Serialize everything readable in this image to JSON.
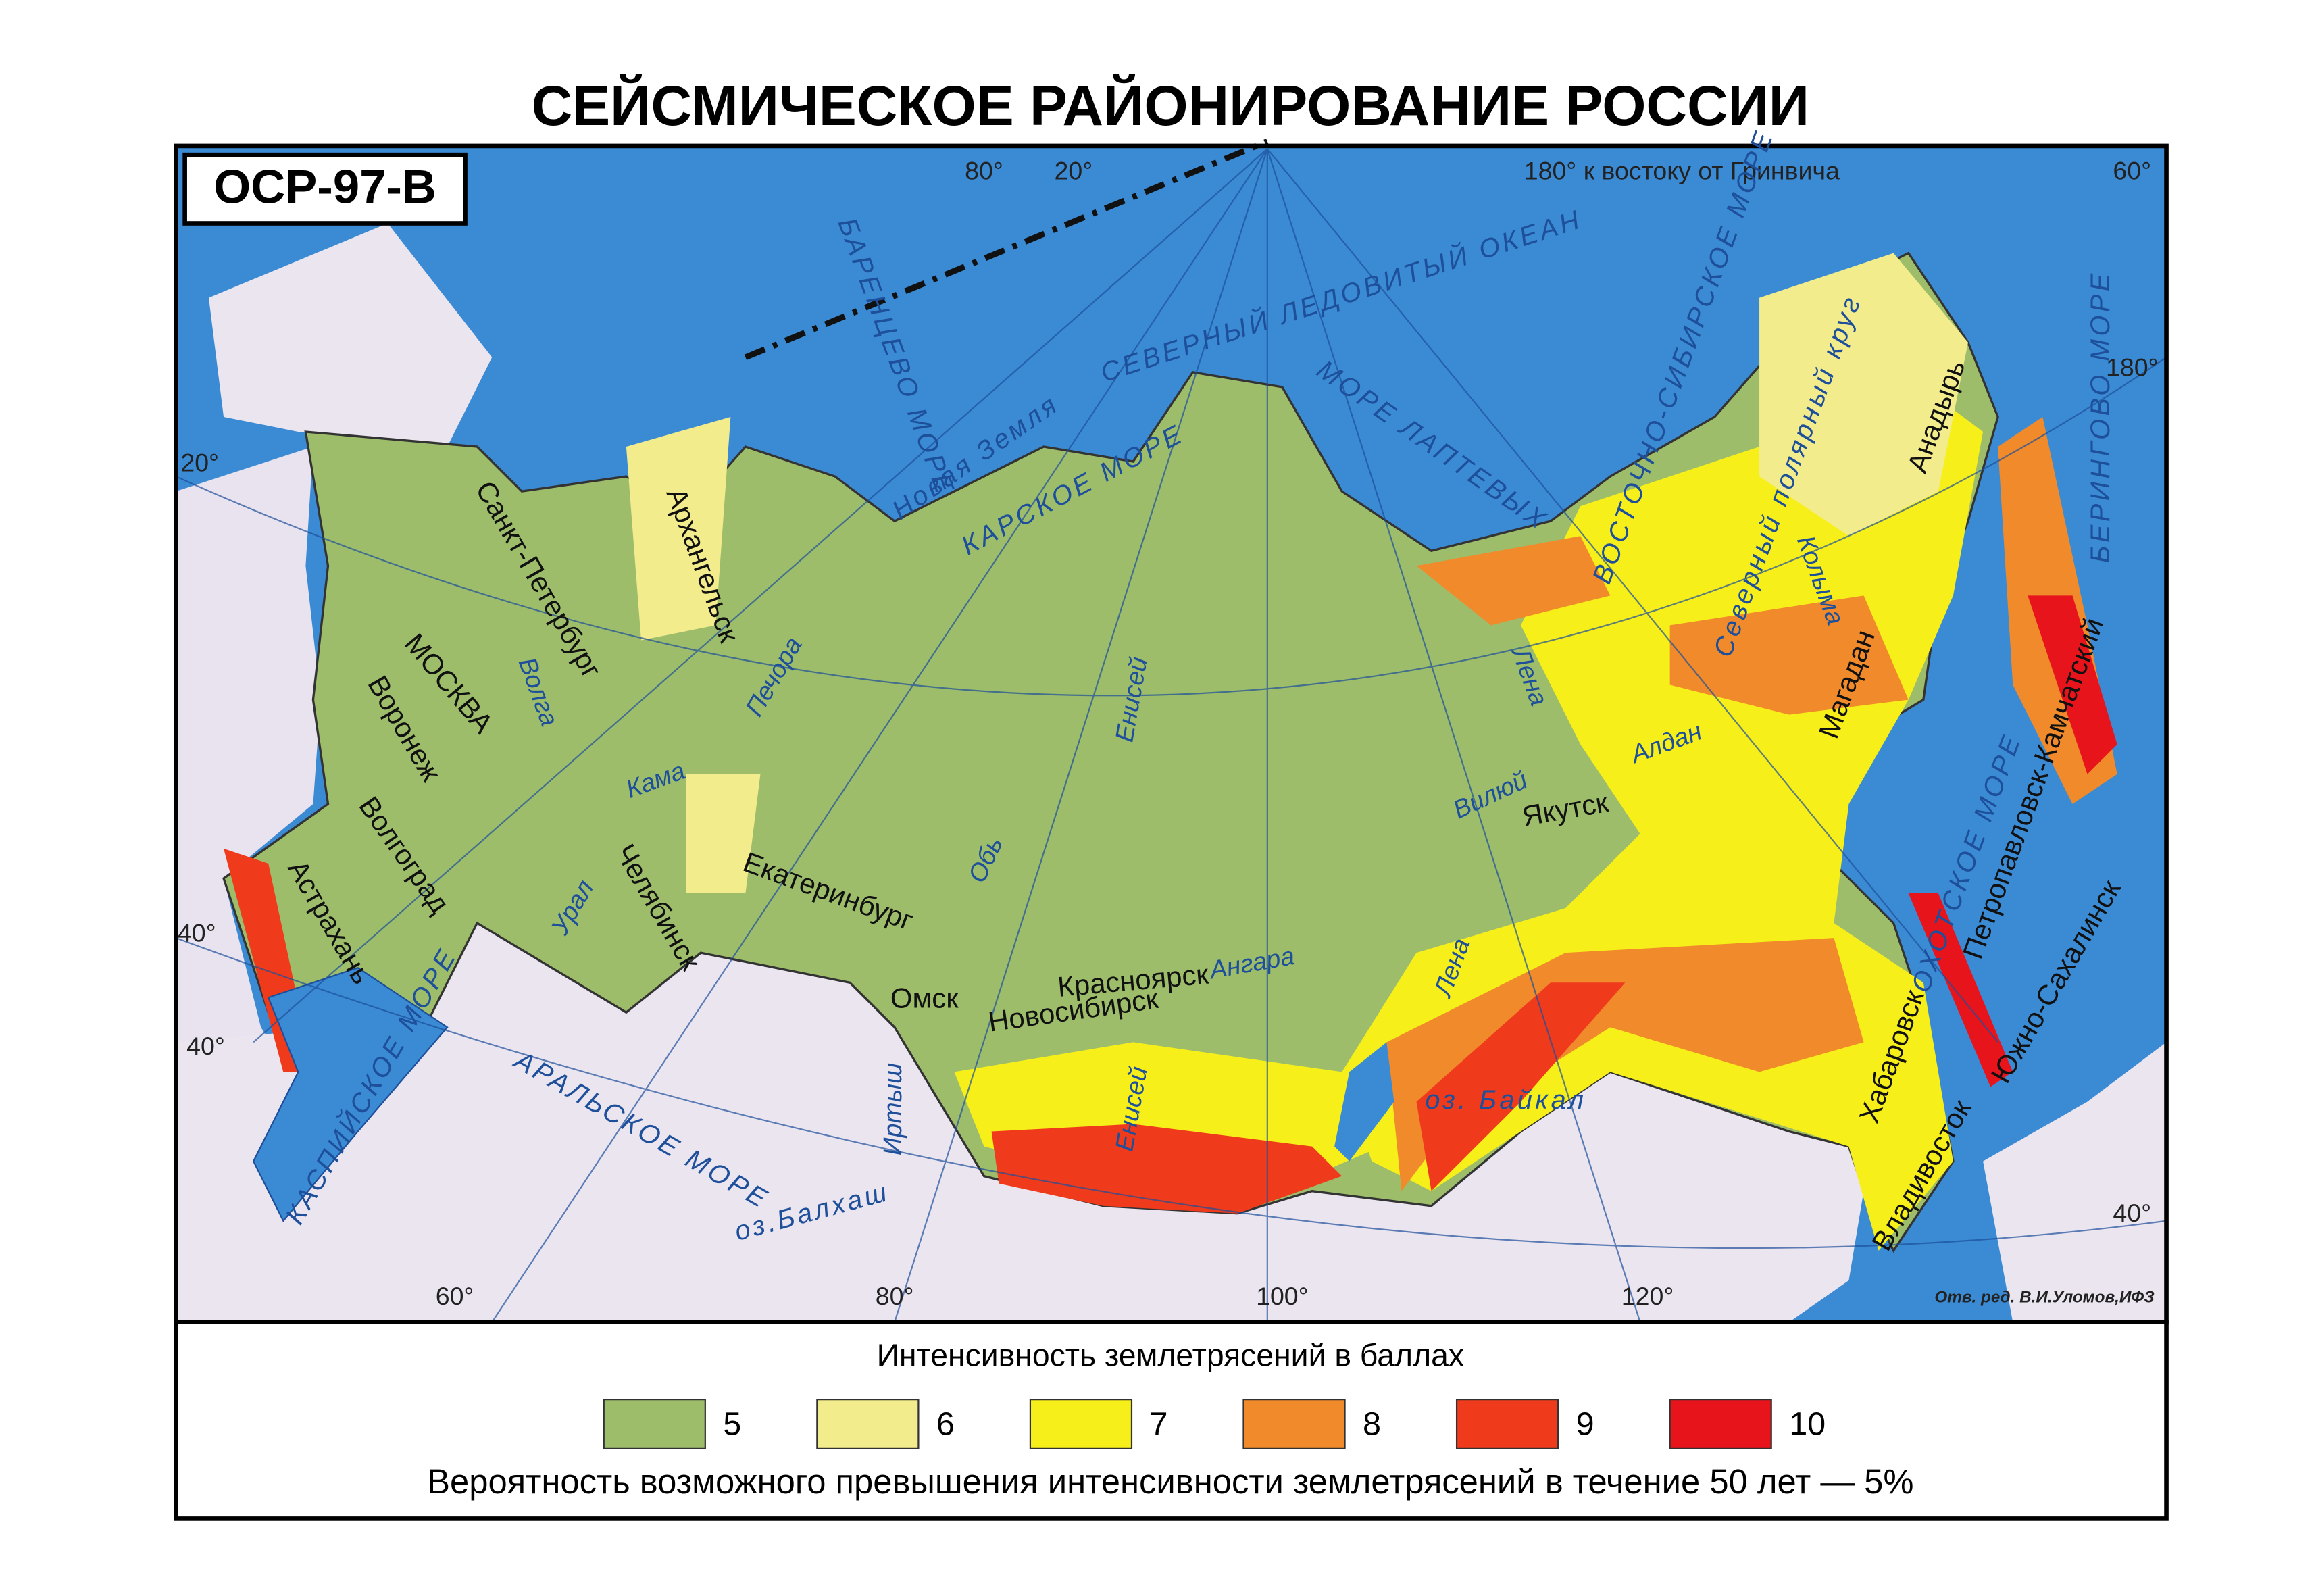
{
  "title": "СЕЙСМИЧЕСКОЕ РАЙОНИРОВАНИЕ РОССИИ",
  "map": {
    "badge": "ОСР-97-В",
    "credit": "Отв. ред. В.И.Уломов,ИФЗ",
    "graticule_labels": [
      "80°",
      "20°",
      "180° к востоку от Гринвича",
      "60°",
      "180°",
      "20°",
      "40°",
      "40°",
      "60°",
      "80°",
      "100°",
      "120°",
      "40°"
    ],
    "seas": [
      "БАРЕНЦЕВО МОРЕ",
      "СЕВЕРНЫЙ ЛЕДОВИТЫЙ ОКЕАН",
      "КАРСКОЕ МОРЕ",
      "МОРЕ ЛАПТЕВЫХ",
      "ВОСТОЧНО-СИБИРСКОЕ МОРЕ",
      "БЕРИНГОВО МОРЕ",
      "ОХОТСКОЕ МОРЕ",
      "КАСПИЙСКОЕ МОРЕ",
      "АРАЛЬСКОЕ МОРЕ",
      "оз.Балхаш",
      "оз. Байкал",
      "Новая Земля",
      "Северный полярный круг"
    ],
    "cities": [
      "Санкт-Петербург",
      "Архангельск",
      "МОСКВА",
      "Воронеж",
      "Волгоград",
      "Астрахань",
      "Челябинск",
      "Екатеринбург",
      "Омск",
      "Новосибирск",
      "Красноярск",
      "Якутск",
      "Магадан",
      "Анадырь",
      "Петропавловск-Камчатский",
      "Южно-Сахалинск",
      "Хабаровск",
      "Владивосток"
    ],
    "rivers": [
      "Волга",
      "Кама",
      "Печора",
      "Урал",
      "Обь",
      "Енисей",
      "Енисей",
      "Иртыш",
      "Ангара",
      "Лена",
      "Лена",
      "Вилюй",
      "Алдан",
      "Колыма"
    ]
  },
  "legend": {
    "title": "Интенсивность землетрясений в баллах",
    "items": [
      {
        "label": "5",
        "color": "#9dbd6b"
      },
      {
        "label": "6",
        "color": "#f2ec8c"
      },
      {
        "label": "7",
        "color": "#f7ef1a"
      },
      {
        "label": "8",
        "color": "#f08a2a"
      },
      {
        "label": "9",
        "color": "#ef3b1c"
      },
      {
        "label": "10",
        "color": "#e8141c"
      }
    ],
    "caption": "Вероятность возможного превышения интенсивности землетрясений в течение 50 лет — 5%"
  }
}
